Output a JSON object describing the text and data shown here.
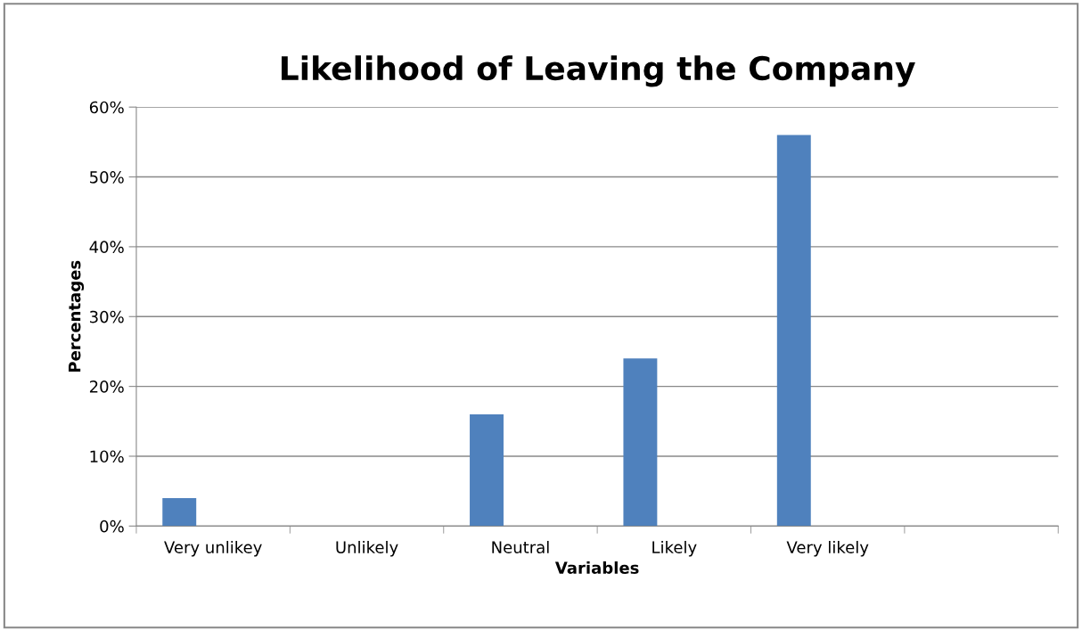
{
  "chart_data": {
    "type": "bar",
    "title": "Likelihood of Leaving the Company",
    "xlabel": "Variables",
    "ylabel": "Percentages",
    "categories": [
      "Very unlikey",
      "Unlikely",
      "Neutral",
      "Likely",
      "Very likely",
      null
    ],
    "values": [
      4,
      0,
      16,
      24,
      56,
      null
    ],
    "color": "#4f81bd",
    "ylim": [
      0,
      60
    ],
    "yticks": [
      {
        "value": 0,
        "label": "0%"
      },
      {
        "value": 10,
        "label": "10%"
      },
      {
        "value": 20,
        "label": "20%"
      },
      {
        "value": 30,
        "label": "30%"
      },
      {
        "value": 40,
        "label": "40%"
      },
      {
        "value": 50,
        "label": "50%"
      },
      {
        "value": 60,
        "label": "60%"
      }
    ],
    "grid": "y",
    "legend": false
  }
}
